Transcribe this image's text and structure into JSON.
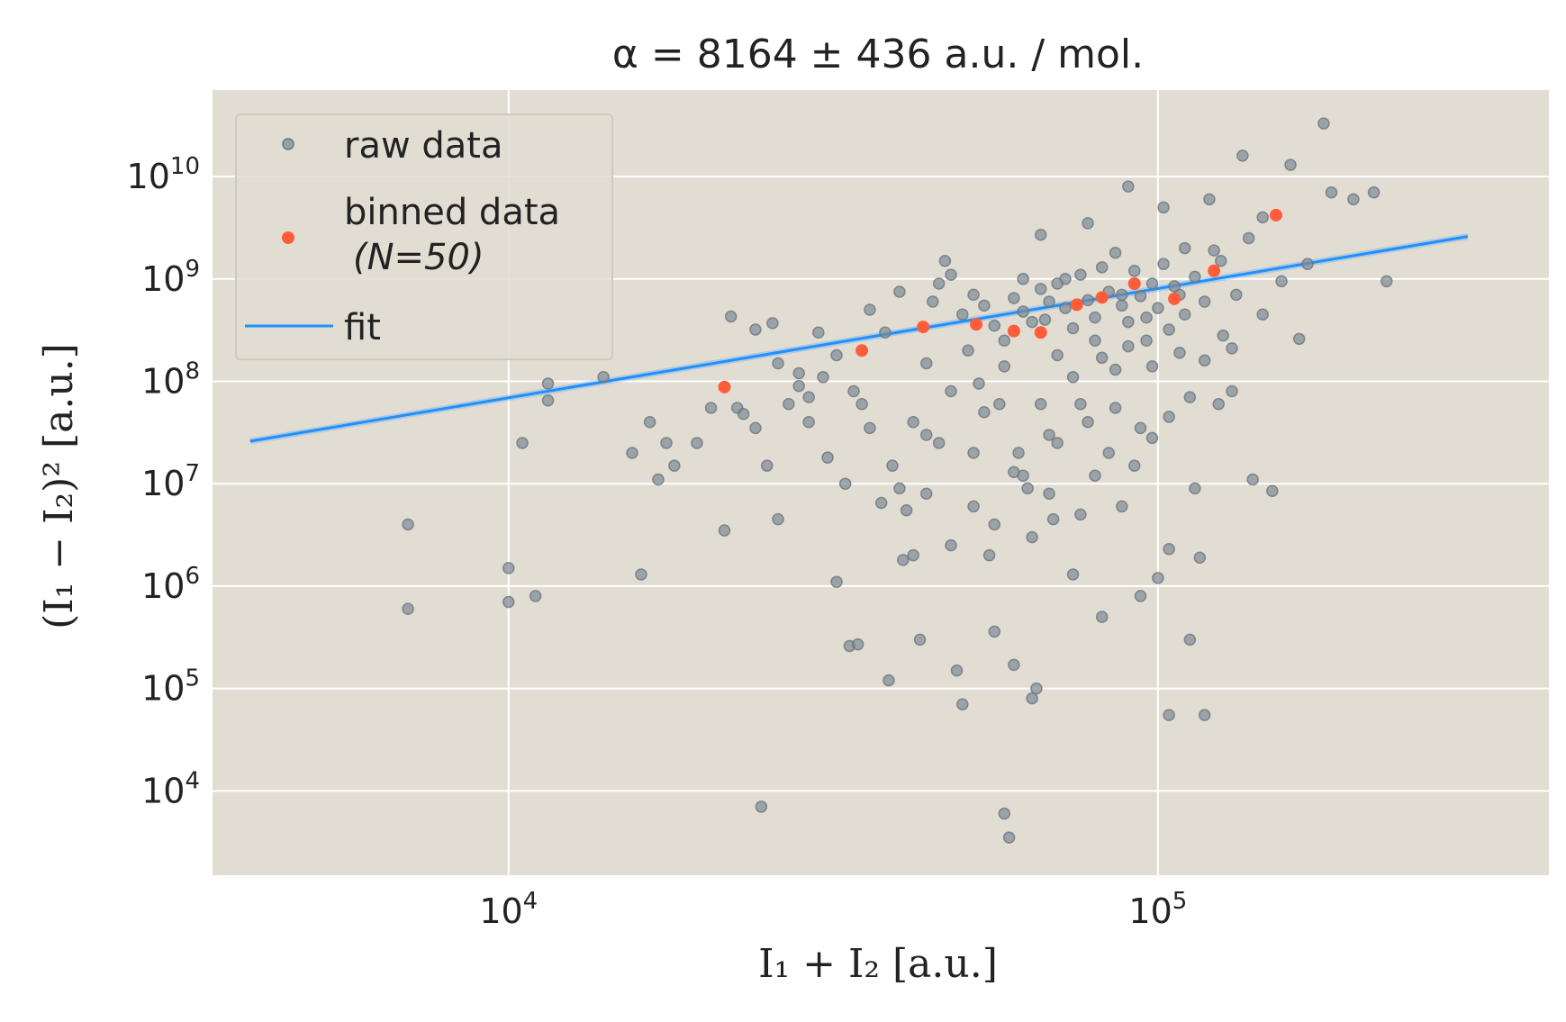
{
  "chart_data": {
    "type": "scatter",
    "title": "α = 8164 ± 436 a.u. / mol.",
    "xlabel": "I₁ + I₂ [a.u.]",
    "ylabel": "(I₁ − I₂)² [a.u.]",
    "xscale": "log",
    "yscale": "log",
    "xlim": [
      3500,
      400000
    ],
    "ylim": [
      1500,
      70000000000
    ],
    "x_ticks": [
      10000,
      100000
    ],
    "x_tick_labels": [
      {
        "base": "10",
        "exp": "4"
      },
      {
        "base": "10",
        "exp": "5"
      }
    ],
    "y_ticks": [
      10000,
      100000,
      1000000,
      10000000,
      100000000,
      1000000000,
      10000000000
    ],
    "y_tick_labels": [
      {
        "base": "10",
        "exp": "4"
      },
      {
        "base": "10",
        "exp": "5"
      },
      {
        "base": "10",
        "exp": "6"
      },
      {
        "base": "10",
        "exp": "7"
      },
      {
        "base": "10",
        "exp": "8"
      },
      {
        "base": "10",
        "exp": "9"
      },
      {
        "base": "10",
        "exp": "10"
      }
    ],
    "grid": true,
    "legend_position": "top-left",
    "colors": {
      "background": "#e2ddd2",
      "raw": "#7f8a96",
      "binned": "#ff5c3a",
      "fit": "#1e90ff",
      "grid": "#ffffff"
    },
    "legend": {
      "raw": "raw data",
      "binned_line1": "binned data",
      "binned_line2": "(N=50)",
      "fit": "fit"
    },
    "series": [
      {
        "name": "raw data",
        "kind": "scatter",
        "points": [
          [
            7000,
            4000000
          ],
          [
            7000,
            600000
          ],
          [
            10000,
            1500000
          ],
          [
            10000,
            700000
          ],
          [
            11000,
            800000
          ],
          [
            10500,
            25000000
          ],
          [
            11500,
            95000000
          ],
          [
            11500,
            65000000
          ],
          [
            14000,
            110000000
          ],
          [
            16000,
            1300000
          ],
          [
            15500,
            20000000
          ],
          [
            16500,
            40000000
          ],
          [
            17500,
            25000000
          ],
          [
            18000,
            15000000
          ],
          [
            17000,
            11000000
          ],
          [
            19500,
            25000000
          ],
          [
            20500,
            55000000
          ],
          [
            21500,
            3500000
          ],
          [
            22500,
            55000000
          ],
          [
            22000,
            430000000
          ],
          [
            23000,
            48000000
          ],
          [
            24000,
            35000000
          ],
          [
            24500,
            7000
          ],
          [
            25000,
            15000000
          ],
          [
            26000,
            4500000
          ],
          [
            25500,
            370000000
          ],
          [
            24000,
            320000000
          ],
          [
            28000,
            120000000
          ],
          [
            29000,
            70000000
          ],
          [
            29000,
            40000000
          ],
          [
            31000,
            18000000
          ],
          [
            30500,
            110000000
          ],
          [
            32000,
            1100000
          ],
          [
            33000,
            10000000
          ],
          [
            33500,
            260000
          ],
          [
            34500,
            270000
          ],
          [
            35000,
            60000000
          ],
          [
            36000,
            35000000
          ],
          [
            37500,
            6500000
          ],
          [
            38500,
            120000
          ],
          [
            39000,
            15000000
          ],
          [
            40500,
            1800000
          ],
          [
            41000,
            5500000
          ],
          [
            42000,
            2000000
          ],
          [
            42000,
            40000000
          ],
          [
            43000,
            300000
          ],
          [
            44000,
            8000000
          ],
          [
            45000,
            600000000
          ],
          [
            46000,
            25000000
          ],
          [
            47000,
            1500000000
          ],
          [
            48000,
            1100000000
          ],
          [
            49000,
            150000
          ],
          [
            50000,
            70000
          ],
          [
            51000,
            200000000
          ],
          [
            52000,
            20000000
          ],
          [
            53000,
            95000000
          ],
          [
            55000,
            2000000
          ],
          [
            56000,
            360000
          ],
          [
            57000,
            60000000
          ],
          [
            58000,
            6000
          ],
          [
            59000,
            3500
          ],
          [
            60000,
            170000
          ],
          [
            61000,
            20000000
          ],
          [
            62000,
            1000000000
          ],
          [
            63000,
            9000000
          ],
          [
            64000,
            80000
          ],
          [
            65000,
            100000
          ],
          [
            66000,
            2700000000
          ],
          [
            67000,
            400000000
          ],
          [
            68000,
            30000000
          ],
          [
            69000,
            4500000
          ],
          [
            70000,
            180000000
          ],
          [
            72000,
            1000000000
          ],
          [
            74000,
            1300000
          ],
          [
            76000,
            60000000
          ],
          [
            78000,
            3500000000
          ],
          [
            80000,
            250000000
          ],
          [
            82000,
            500000
          ],
          [
            84000,
            20000000
          ],
          [
            86000,
            130000000
          ],
          [
            88000,
            700000000
          ],
          [
            90000,
            8000000000
          ],
          [
            92000,
            15000000
          ],
          [
            94000,
            800000
          ],
          [
            96000,
            420000000
          ],
          [
            98000,
            28000000
          ],
          [
            100000,
            1200000
          ],
          [
            102000,
            5000000000
          ],
          [
            104000,
            55000
          ],
          [
            104000,
            2300000
          ],
          [
            108000,
            700000000
          ],
          [
            110000,
            2000000000
          ],
          [
            112000,
            300000
          ],
          [
            114000,
            9000000
          ],
          [
            116000,
            1900000
          ],
          [
            118000,
            55000
          ],
          [
            120000,
            6000000000
          ],
          [
            125000,
            1500000000
          ],
          [
            130000,
            80000000
          ],
          [
            135000,
            16000000000
          ],
          [
            140000,
            11000000
          ],
          [
            145000,
            4000000000
          ],
          [
            150000,
            8500000
          ],
          [
            155000,
            950000000
          ],
          [
            160000,
            13000000000
          ],
          [
            165000,
            260000000
          ],
          [
            170000,
            1400000000
          ],
          [
            180000,
            33000000000
          ],
          [
            185000,
            7000000000
          ],
          [
            200000,
            6000000000
          ],
          [
            215000,
            7000000000
          ],
          [
            225000,
            950000000
          ],
          [
            36000,
            500000000
          ],
          [
            38000,
            300000000
          ],
          [
            40000,
            750000000
          ],
          [
            44000,
            150000000
          ],
          [
            46000,
            900000000
          ],
          [
            50000,
            450000000
          ],
          [
            52000,
            700000000
          ],
          [
            54000,
            550000000
          ],
          [
            56000,
            350000000
          ],
          [
            58000,
            250000000
          ],
          [
            60000,
            650000000
          ],
          [
            62000,
            480000000
          ],
          [
            64000,
            380000000
          ],
          [
            66000,
            800000000
          ],
          [
            68000,
            600000000
          ],
          [
            70000,
            900000000
          ],
          [
            72000,
            520000000
          ],
          [
            74000,
            330000000
          ],
          [
            76000,
            1100000000
          ],
          [
            78000,
            620000000
          ],
          [
            80000,
            420000000
          ],
          [
            82000,
            1300000000
          ],
          [
            84000,
            750000000
          ],
          [
            86000,
            1800000000
          ],
          [
            88000,
            550000000
          ],
          [
            90000,
            380000000
          ],
          [
            92000,
            1200000000
          ],
          [
            94000,
            680000000
          ],
          [
            96000,
            250000000
          ],
          [
            98000,
            900000000
          ],
          [
            100000,
            520000000
          ],
          [
            102000,
            1400000000
          ],
          [
            104000,
            320000000
          ],
          [
            106000,
            850000000
          ],
          [
            110000,
            450000000
          ],
          [
            114000,
            1050000000
          ],
          [
            118000,
            600000000
          ],
          [
            122000,
            1900000000
          ],
          [
            126000,
            280000000
          ],
          [
            132000,
            700000000
          ],
          [
            138000,
            2500000000
          ],
          [
            145000,
            450000000
          ],
          [
            48000,
            80000000
          ],
          [
            44000,
            30000000
          ],
          [
            54000,
            50000000
          ],
          [
            58000,
            140000000
          ],
          [
            62000,
            12000000
          ],
          [
            66000,
            60000000
          ],
          [
            70000,
            25000000
          ],
          [
            74000,
            110000000
          ],
          [
            78000,
            40000000
          ],
          [
            82000,
            170000000
          ],
          [
            86000,
            55000000
          ],
          [
            90000,
            220000000
          ],
          [
            94000,
            35000000
          ],
          [
            98000,
            140000000
          ],
          [
            104000,
            45000000
          ],
          [
            108000,
            190000000
          ],
          [
            112000,
            70000000
          ],
          [
            118000,
            160000000
          ],
          [
            124000,
            60000000
          ],
          [
            130000,
            210000000
          ],
          [
            40000,
            9000000
          ],
          [
            48000,
            2500000
          ],
          [
            52000,
            6000000
          ],
          [
            56000,
            4000000
          ],
          [
            60000,
            13000000
          ],
          [
            64000,
            3000000
          ],
          [
            68000,
            8000000
          ],
          [
            76000,
            5000000
          ],
          [
            80000,
            12000000
          ],
          [
            88000,
            6000000
          ],
          [
            34000,
            80000000
          ],
          [
            32000,
            180000000
          ],
          [
            30000,
            300000000
          ],
          [
            28000,
            90000000
          ],
          [
            27000,
            60000000
          ],
          [
            26000,
            150000000
          ]
        ]
      },
      {
        "name": "binned data (N=50)",
        "kind": "scatter",
        "points": [
          [
            21500,
            88000000
          ],
          [
            35000,
            200000000
          ],
          [
            43500,
            340000000
          ],
          [
            52500,
            360000000
          ],
          [
            60000,
            310000000
          ],
          [
            66000,
            300000000
          ],
          [
            75000,
            560000000
          ],
          [
            82000,
            660000000
          ],
          [
            92000,
            900000000
          ],
          [
            106000,
            640000000
          ],
          [
            122000,
            1200000000
          ],
          [
            152000,
            4200000000
          ]
        ]
      },
      {
        "name": "fit",
        "kind": "line",
        "points": [
          [
            4000,
            26000000
          ],
          [
            300000,
            2600000000
          ]
        ]
      }
    ]
  }
}
